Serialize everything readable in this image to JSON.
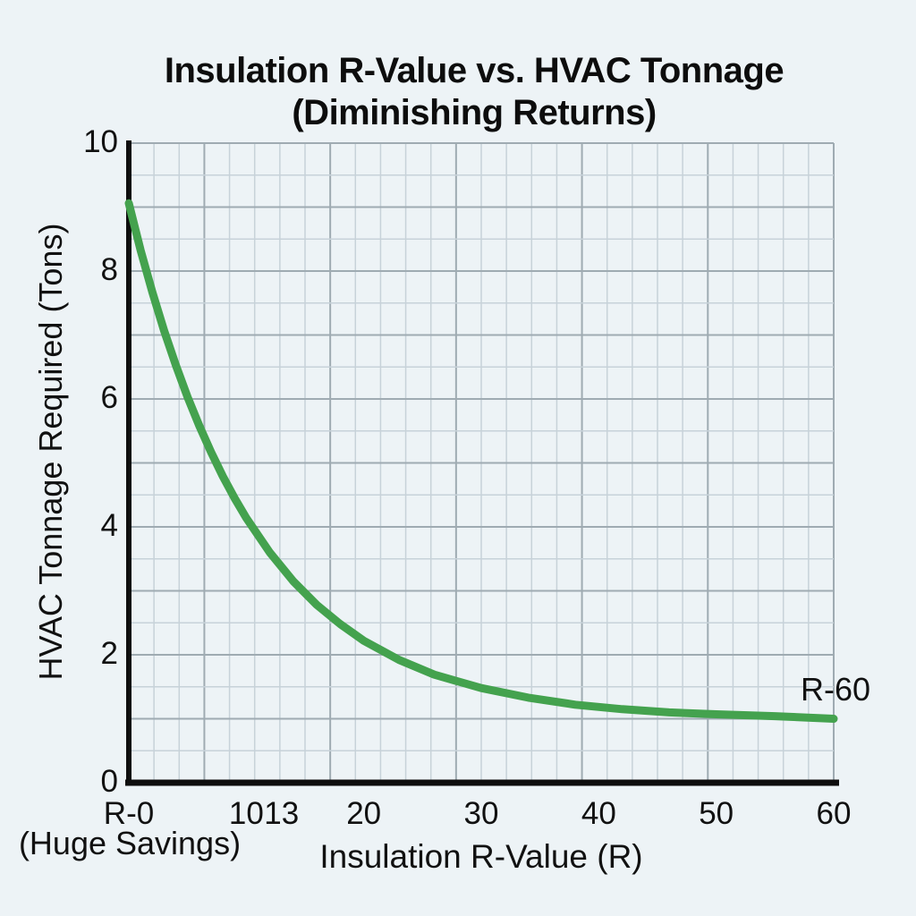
{
  "page": {
    "background": "#edf3f6"
  },
  "chart_data": {
    "type": "line",
    "title_line1": "Insulation R-Value vs. HVAC Tonnage",
    "title_line2": "(Diminishing Returns)",
    "xlabel": "Insulation R-Value (R)",
    "ylabel": "HVAC Tonnage Required (Tons)",
    "xlim": [
      0,
      60
    ],
    "ylim": [
      0,
      10
    ],
    "x_ticks": [
      {
        "value": 0,
        "label": "R-0"
      },
      {
        "value": 10,
        "label": "10"
      },
      {
        "value": 13,
        "label": "13"
      },
      {
        "value": 20,
        "label": "20"
      },
      {
        "value": 30,
        "label": "30"
      },
      {
        "value": 40,
        "label": "40"
      },
      {
        "value": 50,
        "label": "50"
      },
      {
        "value": 60,
        "label": "60"
      }
    ],
    "y_ticks": [
      0,
      2,
      4,
      6,
      8,
      10
    ],
    "x_sub_annotation": "(Huge Savings)",
    "annotation": {
      "label": "R-60",
      "x": 60,
      "y": 1.0
    },
    "grid": true,
    "grid_minor_columns": 28,
    "grid_major_column_every": 5,
    "grid_minor_row_step_tons": 0.5,
    "grid_major_row_step_tons": 1,
    "legend": "none",
    "colors": {
      "line": "#44a24e",
      "axis": "#0e0e0e",
      "grid_minor": "#c7d2d9",
      "grid_major": "#9fabb2",
      "text": "#111111",
      "background": "#edf3f6"
    },
    "series": [
      {
        "name": "HVAC Tonnage Required",
        "x": [
          0,
          1,
          2,
          3,
          4,
          5,
          6,
          7,
          8,
          9,
          10,
          12,
          14,
          16,
          18,
          20,
          23,
          26,
          30,
          34,
          38,
          42,
          46,
          50,
          55,
          60
        ],
        "y": [
          9.06,
          8.33,
          7.67,
          7.07,
          6.53,
          6.03,
          5.58,
          5.17,
          4.79,
          4.45,
          4.14,
          3.6,
          3.15,
          2.78,
          2.48,
          2.22,
          1.92,
          1.69,
          1.48,
          1.33,
          1.22,
          1.15,
          1.1,
          1.07,
          1.04,
          1.0
        ]
      }
    ]
  }
}
